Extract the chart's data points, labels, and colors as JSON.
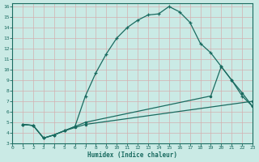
{
  "xlabel": "Humidex (Indice chaleur)",
  "bg_color": "#caeae5",
  "line_color": "#1a6b60",
  "grid_color": "#b0ddd8",
  "xlim": [
    0,
    23
  ],
  "ylim": [
    3,
    16.3
  ],
  "xticks": [
    0,
    1,
    2,
    3,
    4,
    5,
    6,
    7,
    8,
    9,
    10,
    11,
    12,
    13,
    14,
    15,
    16,
    17,
    18,
    19,
    20,
    21,
    22,
    23
  ],
  "yticks": [
    3,
    4,
    5,
    6,
    7,
    8,
    9,
    10,
    11,
    12,
    13,
    14,
    15,
    16
  ],
  "curve1_x": [
    1,
    2,
    3,
    4,
    5,
    6,
    7,
    8,
    9,
    10,
    11,
    12,
    13,
    14,
    15,
    16,
    17,
    18,
    19,
    20,
    21,
    22,
    23
  ],
  "curve1_y": [
    4.8,
    4.7,
    3.5,
    3.8,
    4.2,
    4.6,
    7.5,
    9.7,
    11.5,
    13.0,
    14.0,
    14.7,
    15.2,
    15.3,
    16.0,
    15.5,
    14.5,
    12.5,
    11.6,
    10.3,
    9.0,
    7.5,
    6.5
  ],
  "curve2_x": [
    1,
    2,
    3,
    4,
    5,
    6,
    7,
    19,
    20,
    21,
    22,
    23
  ],
  "curve2_y": [
    4.8,
    4.7,
    3.5,
    3.8,
    4.2,
    4.6,
    5.0,
    7.5,
    10.3,
    9.0,
    7.8,
    6.5
  ],
  "curve3_x": [
    1,
    2,
    3,
    4,
    5,
    6,
    7,
    23
  ],
  "curve3_y": [
    4.8,
    4.7,
    3.5,
    3.8,
    4.2,
    4.5,
    4.8,
    7.0
  ]
}
